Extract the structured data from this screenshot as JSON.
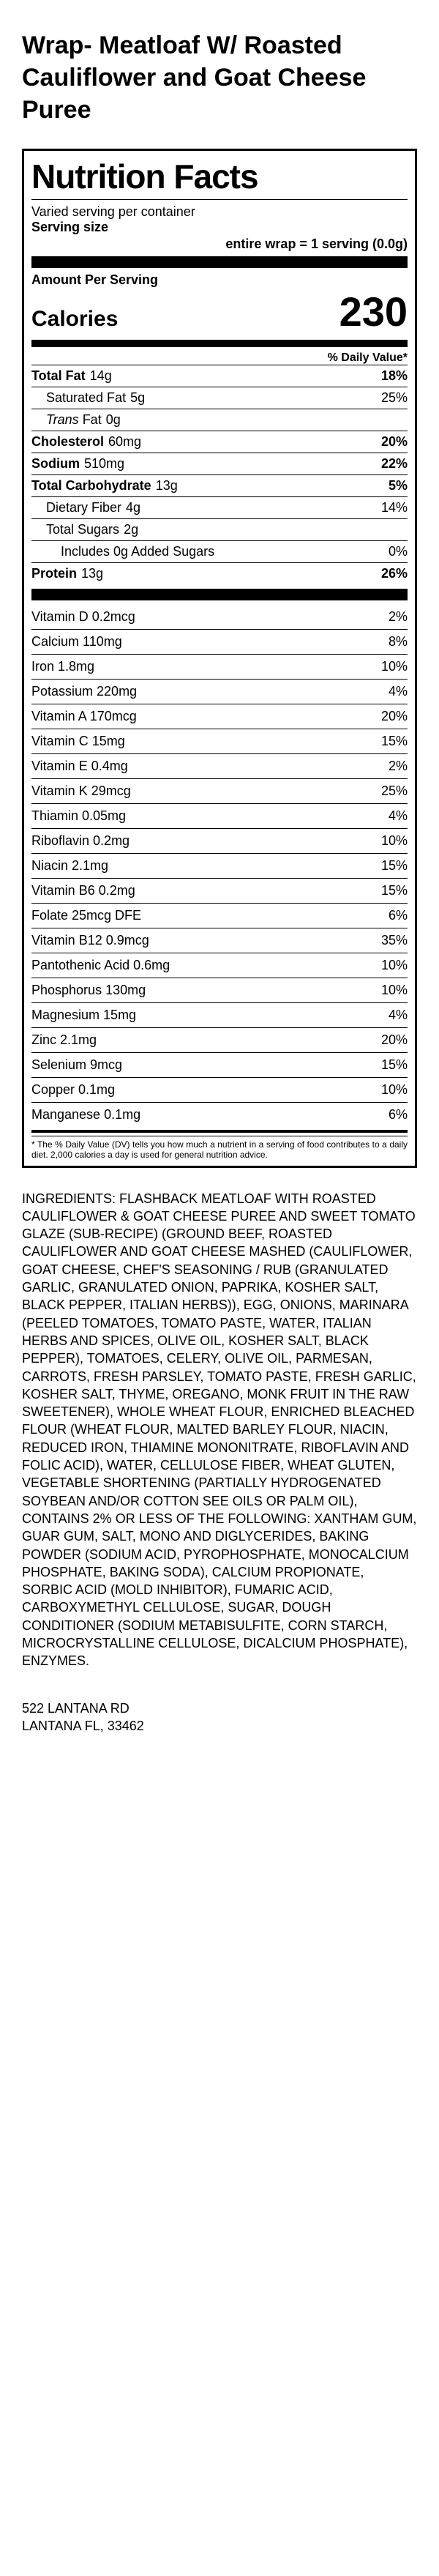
{
  "title": "Wrap- Meatloaf W/ Roasted Cauliflower and Goat Cheese Puree",
  "panel": {
    "heading": "Nutrition Facts",
    "servings_per_container": "Varied serving per container",
    "serving_size_label": "Serving size",
    "serving_size_value": "entire wrap = 1 serving (0.0g)",
    "amount_per_serving": "Amount Per Serving",
    "calories_label": "Calories",
    "calories_value": "230",
    "dv_header": "% Daily Value*",
    "macros": [
      {
        "name": "Total Fat",
        "amount": "14g",
        "pct": "18%",
        "bold": true,
        "indent": 0
      },
      {
        "name": "Saturated Fat",
        "amount": "5g",
        "pct": "25%",
        "bold": false,
        "indent": 1
      },
      {
        "name_html": "<i>Trans</i> Fat",
        "amount": "0g",
        "pct": "",
        "bold": false,
        "indent": 1,
        "italic_name": true
      },
      {
        "name": "Cholesterol",
        "amount": "60mg",
        "pct": "20%",
        "bold": true,
        "indent": 0
      },
      {
        "name": "Sodium",
        "amount": "510mg",
        "pct": "22%",
        "bold": true,
        "indent": 0
      },
      {
        "name": "Total Carbohydrate",
        "amount": "13g",
        "pct": "5%",
        "bold": true,
        "indent": 0
      },
      {
        "name": "Dietary Fiber",
        "amount": "4g",
        "pct": "14%",
        "bold": false,
        "indent": 1
      },
      {
        "name": "Total Sugars",
        "amount": "2g",
        "pct": "",
        "bold": false,
        "indent": 1
      },
      {
        "name": "Includes 0g Added Sugars",
        "amount": "",
        "pct": "0%",
        "bold": false,
        "indent": 2
      },
      {
        "name": "Protein",
        "amount": "13g",
        "pct": "26%",
        "bold": true,
        "indent": 0
      }
    ],
    "micros": [
      {
        "name": "Vitamin D 0.2mcg",
        "pct": "2%"
      },
      {
        "name": "Calcium 110mg",
        "pct": "8%"
      },
      {
        "name": "Iron 1.8mg",
        "pct": "10%"
      },
      {
        "name": "Potassium 220mg",
        "pct": "4%"
      },
      {
        "name": "Vitamin A 170mcg",
        "pct": "20%"
      },
      {
        "name": "Vitamin C 15mg",
        "pct": "15%"
      },
      {
        "name": "Vitamin E 0.4mg",
        "pct": "2%"
      },
      {
        "name": "Vitamin K 29mcg",
        "pct": "25%"
      },
      {
        "name": "Thiamin 0.05mg",
        "pct": "4%"
      },
      {
        "name": "Riboflavin 0.2mg",
        "pct": "10%"
      },
      {
        "name": "Niacin 2.1mg",
        "pct": "15%"
      },
      {
        "name": "Vitamin B6 0.2mg",
        "pct": "15%"
      },
      {
        "name": "Folate 25mcg DFE",
        "pct": "6%"
      },
      {
        "name": "Vitamin B12 0.9mcg",
        "pct": "35%"
      },
      {
        "name": "Pantothenic Acid 0.6mg",
        "pct": "10%"
      },
      {
        "name": "Phosphorus 130mg",
        "pct": "10%"
      },
      {
        "name": "Magnesium 15mg",
        "pct": "4%"
      },
      {
        "name": "Zinc 2.1mg",
        "pct": "20%"
      },
      {
        "name": "Selenium 9mcg",
        "pct": "15%"
      },
      {
        "name": "Copper 0.1mg",
        "pct": "10%"
      },
      {
        "name": "Manganese 0.1mg",
        "pct": "6%"
      }
    ],
    "footnote": "* The % Daily Value (DV) tells you how much a nutrient in a serving of food contributes to a daily diet. 2,000 calories a day is used for general nutrition advice."
  },
  "ingredients": "INGREDIENTS: FLASHBACK MEATLOAF WITH ROASTED CAULIFLOWER & GOAT CHEESE PUREE AND SWEET TOMATO GLAZE (SUB-RECIPE) (GROUND BEEF, ROASTED CAULIFLOWER AND GOAT CHEESE MASHED (CAULIFLOWER, GOAT CHEESE, CHEF'S SEASONING / RUB (GRANULATED GARLIC, GRANULATED ONION, PAPRIKA, KOSHER SALT, BLACK PEPPER, ITALIAN HERBS)), EGG, ONIONS, MARINARA (PEELED TOMATOES, TOMATO PASTE, WATER, ITALIAN HERBS AND SPICES, OLIVE OIL, KOSHER SALT, BLACK PEPPER), TOMATOES, CELERY, OLIVE OIL, PARMESAN, CARROTS, FRESH PARSLEY, TOMATO PASTE, FRESH GARLIC, KOSHER SALT, THYME, OREGANO, MONK FRUIT IN THE RAW SWEETENER), WHOLE WHEAT FLOUR, ENRICHED BLEACHED FLOUR (WHEAT FLOUR, MALTED BARLEY FLOUR, NIACIN, REDUCED IRON, THIAMINE MONONITRATE, RIBOFLAVIN AND FOLIC ACID), WATER, CELLULOSE FIBER, WHEAT GLUTEN, VEGETABLE SHORTENING (PARTIALLY HYDROGENATED SOYBEAN AND/OR COTTON SEE OILS OR PALM OIL), CONTAINS 2% OR LESS OF THE FOLLOWING: XANTHAM GUM, GUAR GUM, SALT, MONO AND DIGLYCERIDES, BAKING POWDER (SODIUM ACID, PYROPHOSPHATE, MONOCALCIUM PHOSPHATE, BAKING SODA), CALCIUM PROPIONATE, SORBIC ACID (MOLD INHIBITOR), FUMARIC ACID, CARBOXYMETHYL CELLULOSE, SUGAR, DOUGH CONDITIONER (SODIUM METABISULFITE, CORN STARCH, MICROCRYSTALLINE CELLULOSE, DICALCIUM PHOSPHATE), ENZYMES.",
  "address_line1": "522 LANTANA RD",
  "address_line2": "LANTANA FL, 33462"
}
